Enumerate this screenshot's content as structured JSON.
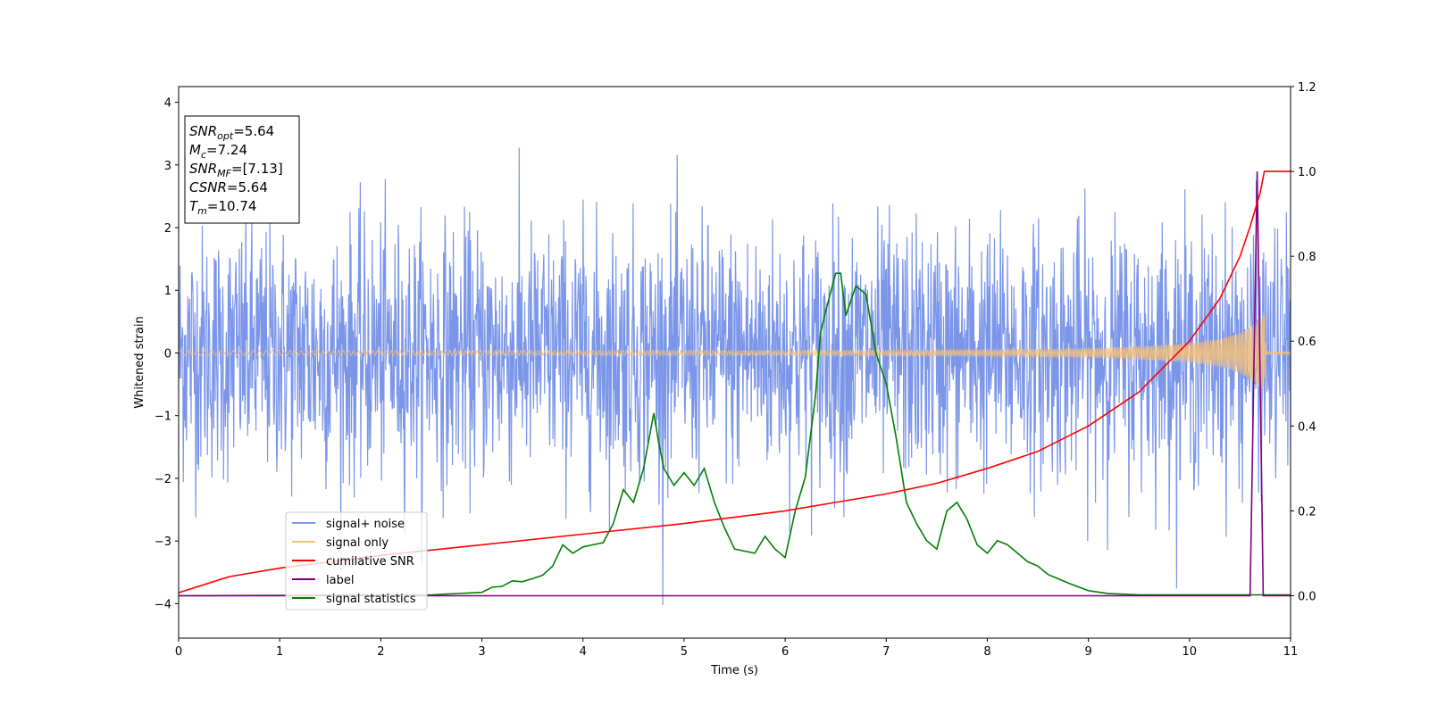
{
  "chart_data": {
    "type": "line",
    "xlabel": "Time (s)",
    "ylabel": "Whitened strain",
    "xlim": [
      0,
      11
    ],
    "ylim": [
      -4.55,
      4.25
    ],
    "y2lim": [
      -0.1,
      1.2
    ],
    "xticks": [
      0,
      1,
      2,
      3,
      4,
      5,
      6,
      7,
      8,
      9,
      10,
      11
    ],
    "yticks": [
      -4,
      -3,
      -2,
      -1,
      0,
      1,
      2,
      3,
      4
    ],
    "y2ticks": [
      0.0,
      0.2,
      0.4,
      0.6,
      0.8,
      1.0,
      1.2
    ],
    "legend_position": "lower-left",
    "grid": false,
    "info_box": {
      "lines": [
        {
          "base": "SNR",
          "sub": "opt",
          "value": "=5.64"
        },
        {
          "base": "M",
          "sub": "c",
          "value": "=7.24"
        },
        {
          "base": "SNR",
          "sub": "MF",
          "value": "=[7.13]"
        },
        {
          "base": "CSNR",
          "sub": "",
          "value": "=5.64"
        },
        {
          "base": "T",
          "sub": "m",
          "value": "=10.74"
        }
      ]
    },
    "series": [
      {
        "name": "signal+ noise",
        "axis": "left",
        "color": "#7b96e8",
        "description_values": {
          "amplitude_range": [
            -4.2,
            3.9
          ],
          "approx_std": 1.0
        }
      },
      {
        "name": "signal only",
        "axis": "left",
        "color": "#f5c07a",
        "envelope": {
          "x": [
            0,
            4,
            6,
            8,
            9,
            9.5,
            10,
            10.3,
            10.5,
            10.65,
            10.74,
            10.76,
            11
          ],
          "amplitude": [
            0.04,
            0.04,
            0.04,
            0.05,
            0.07,
            0.1,
            0.15,
            0.22,
            0.32,
            0.48,
            0.62,
            0.02,
            0.02
          ]
        }
      },
      {
        "name": "cumilative SNR",
        "axis": "right",
        "color": "#ff0000",
        "x": [
          0,
          0.5,
          1,
          2,
          3,
          4,
          5,
          6,
          7,
          7.5,
          8,
          8.5,
          9,
          9.5,
          10,
          10.3,
          10.5,
          10.6,
          10.7,
          10.74,
          11
        ],
        "y": [
          0.007,
          0.045,
          0.065,
          0.095,
          0.12,
          0.145,
          0.17,
          0.2,
          0.24,
          0.265,
          0.3,
          0.34,
          0.4,
          0.48,
          0.6,
          0.7,
          0.8,
          0.87,
          0.95,
          1.0,
          1.0
        ]
      },
      {
        "name": "label",
        "axis": "right",
        "color": "#800080",
        "x": [
          0,
          10.6,
          10.67,
          10.73,
          11
        ],
        "y": [
          0.0,
          0.0,
          1.0,
          0.0,
          0.0
        ]
      },
      {
        "name": "signal statistics",
        "axis": "right",
        "color": "#008000",
        "x": [
          0,
          2.5,
          3.0,
          3.1,
          3.2,
          3.3,
          3.4,
          3.5,
          3.6,
          3.7,
          3.8,
          3.9,
          4.0,
          4.1,
          4.2,
          4.3,
          4.4,
          4.5,
          4.6,
          4.7,
          4.75,
          4.8,
          4.9,
          5.0,
          5.1,
          5.2,
          5.3,
          5.4,
          5.5,
          5.6,
          5.7,
          5.8,
          5.9,
          6.0,
          6.1,
          6.2,
          6.3,
          6.35,
          6.4,
          6.5,
          6.55,
          6.6,
          6.7,
          6.8,
          6.9,
          7.0,
          7.1,
          7.2,
          7.3,
          7.4,
          7.5,
          7.6,
          7.7,
          7.8,
          7.9,
          8.0,
          8.1,
          8.2,
          8.3,
          8.4,
          8.5,
          8.6,
          8.7,
          8.8,
          9.0,
          9.2,
          9.5,
          10.0,
          10.5,
          11.0
        ],
        "y": [
          0.0,
          0.002,
          0.008,
          0.02,
          0.022,
          0.035,
          0.033,
          0.04,
          0.048,
          0.07,
          0.12,
          0.1,
          0.115,
          0.12,
          0.125,
          0.17,
          0.25,
          0.22,
          0.3,
          0.43,
          0.36,
          0.3,
          0.26,
          0.29,
          0.26,
          0.3,
          0.22,
          0.16,
          0.11,
          0.105,
          0.1,
          0.14,
          0.11,
          0.09,
          0.2,
          0.28,
          0.47,
          0.62,
          0.67,
          0.76,
          0.76,
          0.66,
          0.73,
          0.71,
          0.57,
          0.5,
          0.37,
          0.22,
          0.17,
          0.13,
          0.11,
          0.2,
          0.22,
          0.18,
          0.12,
          0.1,
          0.13,
          0.12,
          0.1,
          0.08,
          0.07,
          0.05,
          0.04,
          0.03,
          0.012,
          0.005,
          0.002,
          0.002,
          0.002,
          0.002
        ]
      }
    ]
  }
}
